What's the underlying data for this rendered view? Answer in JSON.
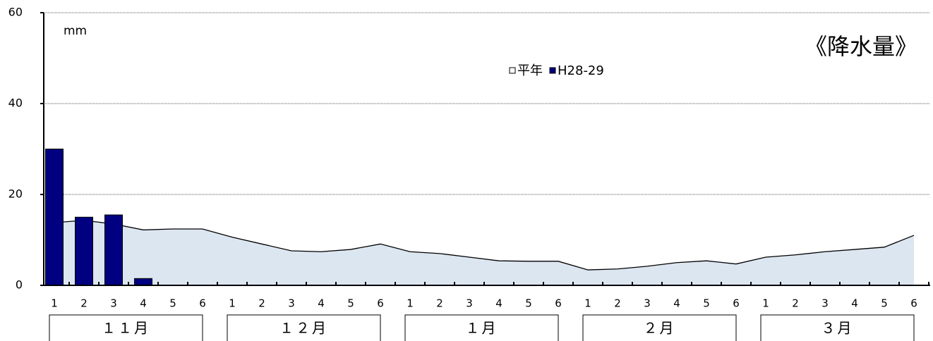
{
  "chart_data": {
    "type": "bar-area",
    "title": "《降水量》",
    "unit_label": "mm",
    "categories": [
      "1",
      "2",
      "3",
      "4",
      "5",
      "6",
      "1",
      "2",
      "3",
      "4",
      "5",
      "6",
      "1",
      "2",
      "3",
      "4",
      "5",
      "6",
      "1",
      "2",
      "3",
      "4",
      "5",
      "6",
      "1",
      "2",
      "3",
      "4",
      "5",
      "6"
    ],
    "month_labels": [
      "１１月",
      "１２月",
      "１月",
      "２月",
      "３月"
    ],
    "series": [
      {
        "name": "平年",
        "kind": "area",
        "color": "#dce6f1",
        "values": [
          13.8,
          14.3,
          13.5,
          12.2,
          12.4,
          12.4,
          10.6,
          9.1,
          7.6,
          7.4,
          7.9,
          9.1,
          7.4,
          7.0,
          6.2,
          5.4,
          5.3,
          5.3,
          3.4,
          3.6,
          4.2,
          5.0,
          5.4,
          4.7,
          6.2,
          6.7,
          7.4,
          7.9,
          8.4,
          11.0
        ]
      },
      {
        "name": "H28-29",
        "kind": "bar",
        "color": "#000080",
        "values": [
          30,
          15,
          15.5,
          1.5,
          null,
          null,
          null,
          null,
          null,
          null,
          null,
          null,
          null,
          null,
          null,
          null,
          null,
          null,
          null,
          null,
          null,
          null,
          null,
          null,
          null,
          null,
          null,
          null,
          null,
          null
        ]
      }
    ],
    "ylim": [
      0,
      60
    ],
    "yticks": [
      0,
      20,
      40,
      60
    ],
    "grid": true
  }
}
